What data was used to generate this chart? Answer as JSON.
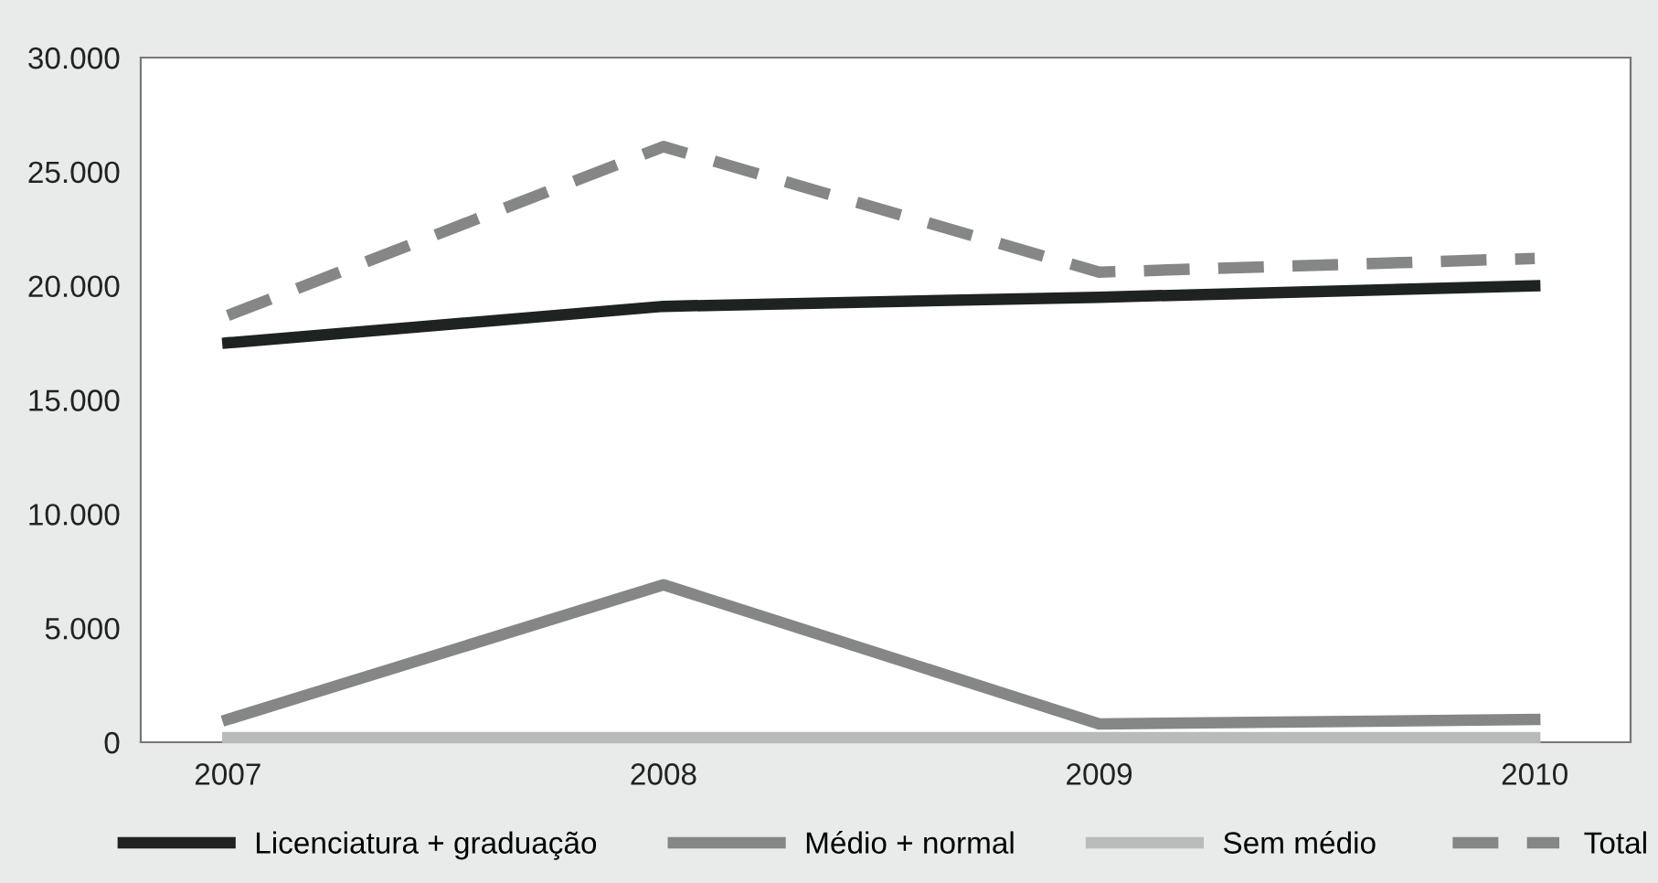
{
  "chart_data": {
    "type": "line",
    "categories": [
      "2007",
      "2008",
      "2009",
      "2010"
    ],
    "series": [
      {
        "name": "Licenciatura + graduação",
        "color": "#1e2220",
        "values": [
          17500,
          19100,
          19500,
          20000
        ]
      },
      {
        "name": "Médio + normal",
        "color": "#858787",
        "values": [
          1000,
          6900,
          800,
          1000
        ]
      },
      {
        "name": "Sem médio",
        "color": "#b9bbbb",
        "values": [
          200,
          200,
          200,
          200
        ]
      },
      {
        "name": "Total",
        "color": "#858787",
        "line_style": "dashed",
        "values": [
          18700,
          26100,
          20600,
          21200
        ]
      }
    ],
    "ylim": [
      0,
      30000
    ],
    "yticks": [
      {
        "value": 0,
        "label": "0"
      },
      {
        "value": 5000,
        "label": "5.000"
      },
      {
        "value": 10000,
        "label": "10.000"
      },
      {
        "value": 15000,
        "label": "15.000"
      },
      {
        "value": 20000,
        "label": "20.000"
      },
      {
        "value": 25000,
        "label": "25.000"
      },
      {
        "value": 30000,
        "label": "30.000"
      }
    ],
    "grid": false,
    "legend": "bottom",
    "line_style": "solid",
    "marker": "none"
  }
}
